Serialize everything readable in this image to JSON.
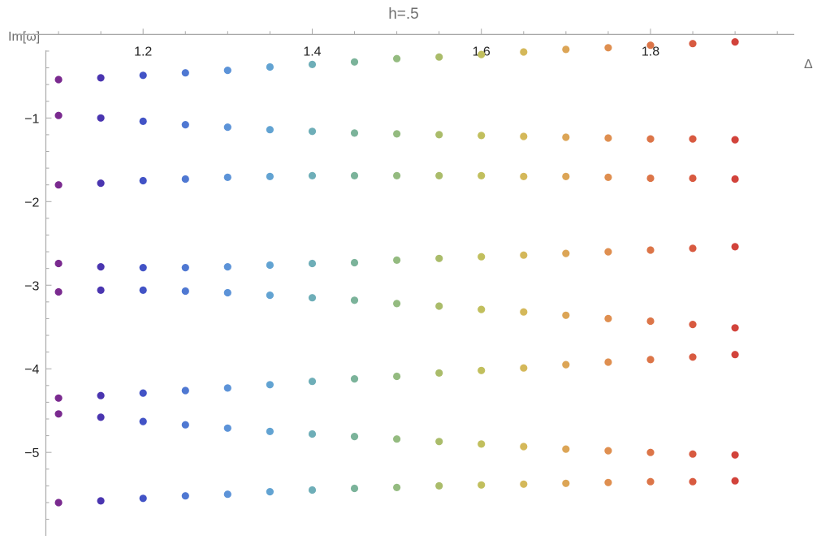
{
  "chart_data": {
    "type": "scatter",
    "title": "h=.5",
    "xlabel": "Δ",
    "ylabel": "Im[ω]",
    "xlim": [
      1.05,
      1.97
    ],
    "ylim": [
      -5.95,
      0.12
    ],
    "x_axis_at_y": 0,
    "y_axis_at_x": 1.085,
    "x_ticks_major": [
      1.2,
      1.4,
      1.6,
      1.8
    ],
    "x_tick_labels": [
      "1.2",
      "1.4",
      "1.6",
      "1.8"
    ],
    "y_ticks_major": [
      -1,
      -2,
      -3,
      -4,
      -5
    ],
    "y_tick_labels": [
      "-1",
      "-2",
      "-3",
      "-4",
      "-5"
    ],
    "grid": false,
    "legend": "none",
    "color_scale": "rainbow (purple → blue → green → yellow → orange → red) by Δ",
    "x": [
      1.1,
      1.15,
      1.2,
      1.25,
      1.3,
      1.35,
      1.4,
      1.45,
      1.5,
      1.55,
      1.6,
      1.65,
      1.7,
      1.75,
      1.8,
      1.85,
      1.9
    ],
    "point_colors": [
      "#7a2a8f",
      "#4a35b0",
      "#4253c6",
      "#4f78d2",
      "#5c93d8",
      "#62a3d2",
      "#6eaeb8",
      "#7bb39a",
      "#94bb80",
      "#aabc6a",
      "#c1bf5d",
      "#d4b85a",
      "#dca556",
      "#df8f50",
      "#dc7548",
      "#d85a40",
      "#d2433b"
    ],
    "series": [
      {
        "values": [
          -0.54,
          -0.52,
          -0.49,
          -0.46,
          -0.43,
          -0.39,
          -0.36,
          -0.33,
          -0.29,
          -0.27,
          -0.24,
          -0.21,
          -0.18,
          -0.16,
          -0.13,
          -0.11,
          -0.09
        ]
      },
      {
        "values": [
          -0.97,
          -1.0,
          -1.04,
          -1.08,
          -1.11,
          -1.14,
          -1.16,
          -1.18,
          -1.19,
          -1.2,
          -1.21,
          -1.22,
          -1.23,
          -1.24,
          -1.25,
          -1.25,
          -1.26
        ]
      },
      {
        "values": [
          -1.8,
          -1.78,
          -1.75,
          -1.73,
          -1.71,
          -1.7,
          -1.69,
          -1.69,
          -1.69,
          -1.69,
          -1.69,
          -1.7,
          -1.7,
          -1.71,
          -1.72,
          -1.72,
          -1.73
        ]
      },
      {
        "values": [
          -2.74,
          -2.78,
          -2.79,
          -2.79,
          -2.78,
          -2.76,
          -2.74,
          -2.73,
          -2.7,
          -2.68,
          -2.66,
          -2.64,
          -2.62,
          -2.6,
          -2.58,
          -2.56,
          -2.54
        ]
      },
      {
        "values": [
          -3.08,
          -3.06,
          -3.06,
          -3.07,
          -3.09,
          -3.12,
          -3.15,
          -3.18,
          -3.22,
          -3.25,
          -3.29,
          -3.32,
          -3.36,
          -3.4,
          -3.43,
          -3.47,
          -3.51
        ]
      },
      {
        "values": [
          -4.35,
          -4.32,
          -4.29,
          -4.26,
          -4.23,
          -4.19,
          -4.15,
          -4.12,
          -4.09,
          -4.05,
          -4.02,
          -3.99,
          -3.95,
          -3.92,
          -3.89,
          -3.86,
          -3.83
        ]
      },
      {
        "values": [
          -4.54,
          -4.58,
          -4.63,
          -4.67,
          -4.71,
          -4.75,
          -4.78,
          -4.81,
          -4.84,
          -4.87,
          -4.9,
          -4.93,
          -4.96,
          -4.98,
          -5.0,
          -5.02,
          -5.03
        ]
      },
      {
        "values": [
          -5.6,
          -5.58,
          -5.55,
          -5.52,
          -5.5,
          -5.47,
          -5.45,
          -5.43,
          -5.42,
          -5.4,
          -5.39,
          -5.38,
          -5.37,
          -5.36,
          -5.35,
          -5.35,
          -5.34
        ]
      }
    ]
  }
}
